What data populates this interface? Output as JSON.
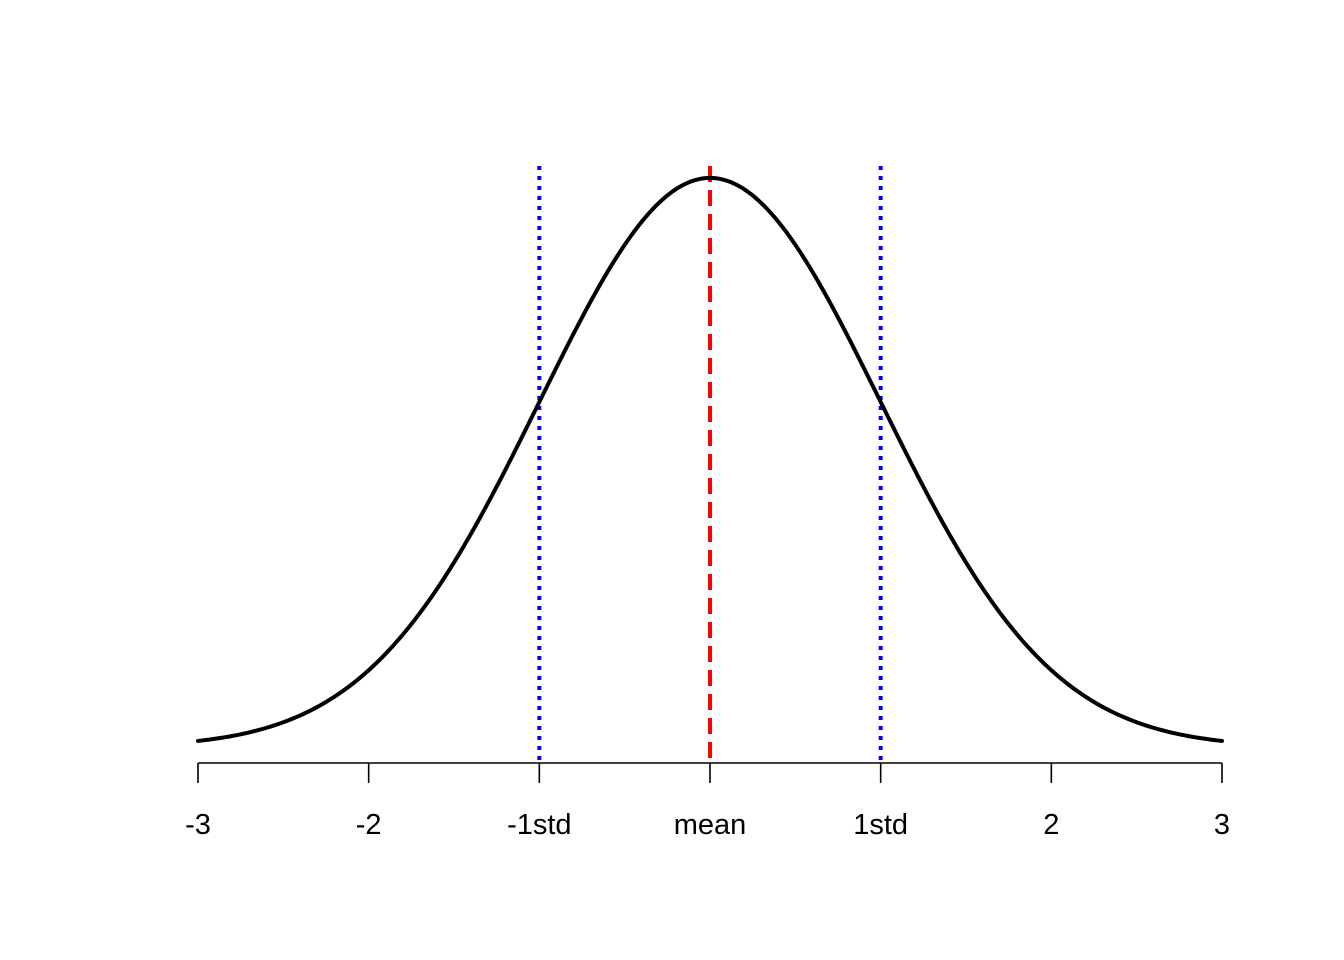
{
  "chart_data": {
    "type": "line",
    "title": "",
    "xlabel": "",
    "ylabel": "",
    "xlim": [
      -3,
      3
    ],
    "ylim": [
      0,
      0.3989
    ],
    "grid": false,
    "y_axis_visible": false,
    "x_ticks": [
      {
        "value": -3,
        "label": "-3"
      },
      {
        "value": -2,
        "label": "-2"
      },
      {
        "value": -1,
        "label": "-1std"
      },
      {
        "value": 0,
        "label": "mean"
      },
      {
        "value": 1,
        "label": "1std"
      },
      {
        "value": 2,
        "label": "2"
      },
      {
        "value": 3,
        "label": "3"
      }
    ],
    "series": [
      {
        "curve": "standard-normal-density",
        "color": "#000000",
        "line_style": "solid",
        "x": [
          -3.0,
          -2.75,
          -2.5,
          -2.25,
          -2.0,
          -1.75,
          -1.5,
          -1.25,
          -1.0,
          -0.75,
          -0.5,
          -0.25,
          0.0,
          0.25,
          0.5,
          0.75,
          1.0,
          1.25,
          1.5,
          1.75,
          2.0,
          2.25,
          2.5,
          2.75,
          3.0
        ],
        "y": [
          0.0044,
          0.0091,
          0.0175,
          0.0317,
          0.054,
          0.0863,
          0.1295,
          0.1826,
          0.242,
          0.3011,
          0.3521,
          0.3867,
          0.3989,
          0.3867,
          0.3521,
          0.3011,
          0.242,
          0.1826,
          0.1295,
          0.0863,
          0.054,
          0.0317,
          0.0175,
          0.0091,
          0.0044
        ]
      }
    ],
    "reference_lines": [
      {
        "x": -1,
        "color": "#0000ff",
        "line_style": "dotted"
      },
      {
        "x": 0,
        "color": "#ff0000",
        "line_style": "dashed"
      },
      {
        "x": 1,
        "color": "#0000ff",
        "line_style": "dotted"
      }
    ]
  }
}
